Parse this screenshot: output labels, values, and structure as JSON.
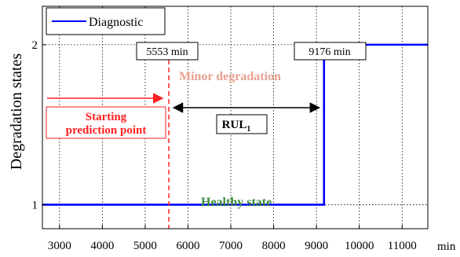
{
  "chart_data": {
    "type": "line",
    "xlabel": "min",
    "ylabel": "Degradation states",
    "xlim": [
      2600,
      11600
    ],
    "ylim": [
      0.85,
      2.24
    ],
    "x_ticks": [
      3000,
      4000,
      5000,
      6000,
      7000,
      8000,
      9000,
      10000,
      11000
    ],
    "x_tick_labels": [
      "3000",
      "4000",
      "5000",
      "6000",
      "7000",
      "8000",
      "9000",
      "10000",
      "11000"
    ],
    "y_ticks": [
      1,
      2
    ],
    "y_tick_labels": [
      "1",
      "2"
    ],
    "grid": true,
    "legend": {
      "position": "top-left",
      "entries": [
        "Diagnostic"
      ]
    },
    "series": [
      {
        "name": "Diagnostic",
        "color": "#0000ff",
        "x": [
          2600,
          9176,
          9176,
          11600
        ],
        "y": [
          1,
          1,
          2,
          2
        ]
      }
    ],
    "annotations": {
      "prediction_time": 5553,
      "prediction_label": "5553 min",
      "transition_time": 9176,
      "transition_label": "9176 min",
      "minor_degradation": "Minor degradation",
      "healthy_state": "Healthy state",
      "starting_line1": "Starting",
      "starting_line2": "prediction point",
      "rul_main": "RUL",
      "rul_sub": "1"
    },
    "colors": {
      "diagnostic": "#0000ff",
      "prediction_line": "#ff2020",
      "minor": "#e8a090",
      "healthy": "#3a8a3a"
    }
  }
}
